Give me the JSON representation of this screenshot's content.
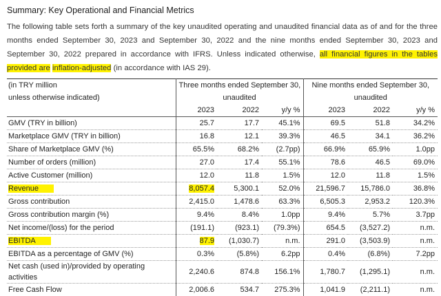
{
  "heading": "Summary: Key Operational and Financial Metrics",
  "para": {
    "before": "The following table sets forth a summary of the key unaudited operating and unaudited financial data as of and for the three months ended September 30, 2023 and September 30, 2022 and the nine months ended September 30, 2023 and September 30, 2022 prepared in accordance with IFRS. Unless indicated otherwise, ",
    "highlight1": "all financial figures in the tables provided are",
    "highlight2": "inflation-adjusted",
    "after": " (in accordance with IAS 29)."
  },
  "table": {
    "unit_line1": "(in TRY million",
    "unit_line2": "unless otherwise indicated)",
    "three_months": "Three months ended September 30,",
    "nine_months": "Nine months ended September 30,",
    "unaudited": "unaudited",
    "col_2023": "2023",
    "col_2022": "2022",
    "col_yy": "y/y %",
    "rows": [
      {
        "label": "GMV (TRY in billion)",
        "v": [
          "25.7",
          "17.7",
          "45.1%",
          "69.5",
          "51.8",
          "34.2%"
        ]
      },
      {
        "label": "Marketplace GMV (TRY in billion)",
        "v": [
          "16.8",
          "12.1",
          "39.3%",
          "46.5",
          "34.1",
          "36.2%"
        ]
      },
      {
        "label": "Share of Marketplace GMV (%)",
        "v": [
          "65.5%",
          "68.2%",
          "(2.7pp)",
          "66.9%",
          "65.9%",
          "1.0pp"
        ]
      },
      {
        "label": "Number of orders (million)",
        "v": [
          "27.0",
          "17.4",
          "55.1%",
          "78.6",
          "46.5",
          "69.0%"
        ]
      },
      {
        "label": "Active Customer (million)",
        "v": [
          "12.0",
          "11.8",
          "1.5%",
          "12.0",
          "11.8",
          "1.5%"
        ]
      },
      {
        "label": "Revenue",
        "v": [
          "8,057.4",
          "5,300.1",
          "52.0%",
          "21,596.7",
          "15,786.0",
          "36.8%"
        ]
      },
      {
        "label": "Gross contribution",
        "v": [
          "2,415.0",
          "1,478.6",
          "63.3%",
          "6,505.3",
          "2,953.2",
          "120.3%"
        ]
      },
      {
        "label": "Gross contribution margin (%)",
        "v": [
          "9.4%",
          "8.4%",
          "1.0pp",
          "9.4%",
          "5.7%",
          "3.7pp"
        ]
      },
      {
        "label": "Net income/(loss) for the period",
        "v": [
          "(191.1)",
          "(923.1)",
          "(79.3%)",
          "654.5",
          "(3,527.2)",
          "n.m."
        ]
      },
      {
        "label": "EBITDA",
        "v": [
          "87.9",
          "(1,030.7)",
          "n.m.",
          "291.0",
          "(3,503.9)",
          "n.m."
        ]
      },
      {
        "label": "EBITDA as a percentage of GMV (%)",
        "v": [
          "0.3%",
          "(5.8%)",
          "6.2pp",
          "0.4%",
          "(6.8%)",
          "7.2pp"
        ]
      },
      {
        "label": "Net cash (used in)/provided by operating activities",
        "v": [
          "2,240.6",
          "874.8",
          "156.1%",
          "1,780.7",
          "(1,295.1)",
          "n.m."
        ]
      },
      {
        "label": "Free Cash Flow",
        "v": [
          "2,006.6",
          "534.7",
          "275.3%",
          "1,041.9",
          "(2,211.1)",
          "n.m."
        ]
      }
    ]
  },
  "colors": {
    "highlight": "#fff200"
  }
}
